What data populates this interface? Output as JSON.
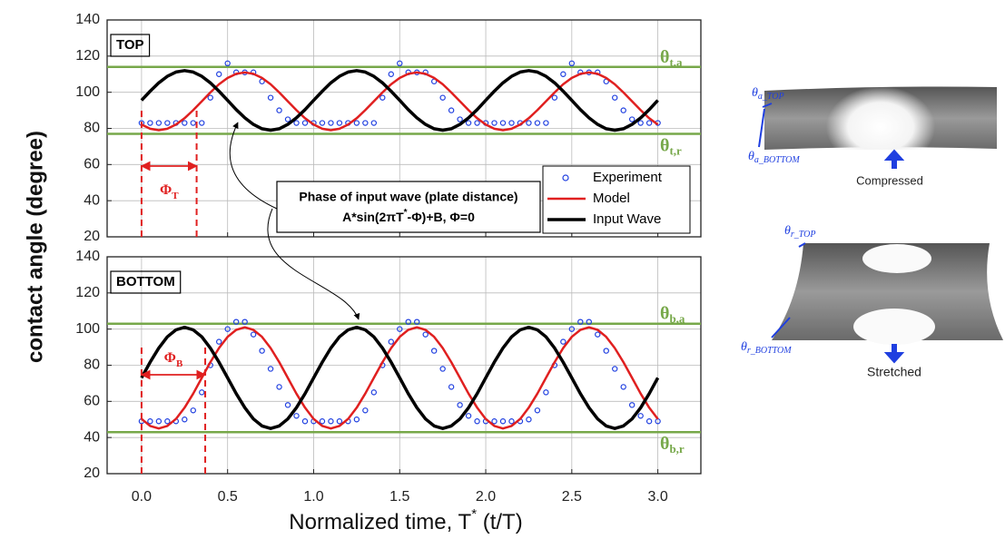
{
  "figure": {
    "ylabel": "contact angle (degree)",
    "xlabel": {
      "base": "Normalized time, T",
      "sup": "*",
      "tail": " (t/T)"
    },
    "annotation": {
      "line1": "Phase of input wave (plate distance)",
      "line2a": "A*sin(2πT",
      "line2sup": "*",
      "line2b": "-Φ)+B, Φ=0"
    }
  },
  "chart_data": [
    {
      "type": "line",
      "panel_label": "TOP",
      "legend": "lower right",
      "xlim": [
        -0.2,
        3.25
      ],
      "ylim": [
        20,
        140
      ],
      "yticks": [
        20,
        40,
        60,
        80,
        100,
        120,
        140
      ],
      "xticks": [
        0,
        0.5,
        1,
        1.5,
        2,
        2.5,
        3
      ],
      "grid": true,
      "x": [
        0,
        0.05,
        0.1,
        0.15,
        0.2,
        0.25,
        0.3,
        0.35,
        0.4,
        0.45,
        0.5,
        0.55,
        0.6,
        0.65,
        0.7,
        0.75,
        0.8,
        0.85,
        0.9,
        0.95,
        1,
        1.05,
        1.1,
        1.15,
        1.2,
        1.25,
        1.3,
        1.35,
        1.4,
        1.45,
        1.5,
        1.55,
        1.6,
        1.65,
        1.7,
        1.75,
        1.8,
        1.85,
        1.9,
        1.95,
        2,
        2.05,
        2.1,
        2.15,
        2.2,
        2.25,
        2.3,
        2.35,
        2.4,
        2.45,
        2.5,
        2.55,
        2.6,
        2.65,
        2.7,
        2.75,
        2.8,
        2.85,
        2.9,
        2.95,
        3
      ],
      "series": [
        {
          "name": "Experiment",
          "style": "markers",
          "color": "#1f3fe0",
          "values": [
            83,
            83,
            83,
            83,
            83,
            83,
            83,
            83,
            97,
            110,
            116,
            111,
            111,
            111,
            106,
            97,
            90,
            85,
            83,
            83,
            83,
            83,
            83,
            83,
            83,
            83,
            83,
            83,
            97,
            110,
            116,
            111,
            111,
            111,
            106,
            97,
            90,
            85,
            83,
            83,
            83,
            83,
            83,
            83,
            83,
            83,
            83,
            83,
            97,
            110,
            116,
            111,
            111,
            111,
            106,
            97,
            90,
            85,
            83,
            83,
            83
          ]
        },
        {
          "name": "Model",
          "style": "line",
          "color": "#e02020",
          "values": [
            82.1,
            79.8,
            79,
            79.8,
            82.1,
            85.6,
            90.1,
            95,
            99.9,
            104.4,
            107.9,
            110.2,
            111,
            110.2,
            107.9,
            104.4,
            99.9,
            95,
            90.1,
            85.6,
            82.1,
            79.8,
            79,
            79.8,
            82.1,
            85.6,
            90.1,
            95,
            99.9,
            104.4,
            107.9,
            110.2,
            111,
            110.2,
            107.9,
            104.4,
            99.9,
            95,
            90.1,
            85.6,
            82.1,
            79.8,
            79,
            79.8,
            82.1,
            85.6,
            90.1,
            95,
            99.9,
            104.4,
            107.9,
            110.2,
            111,
            110.2,
            107.9,
            104.4,
            99.9,
            95,
            90.1,
            85.6,
            82.1
          ]
        },
        {
          "name": "Input Wave",
          "style": "thick",
          "color": "#000000",
          "values": [
            95.5,
            100.6,
            105.2,
            108.8,
            111.2,
            112,
            111.2,
            108.8,
            105.2,
            100.6,
            95.5,
            90.4,
            85.8,
            82.2,
            79.8,
            79,
            79.8,
            82.2,
            85.8,
            90.4,
            95.5,
            100.6,
            105.2,
            108.8,
            111.2,
            112,
            111.2,
            108.8,
            105.2,
            100.6,
            95.5,
            90.4,
            85.8,
            82.2,
            79.8,
            79,
            79.8,
            82.2,
            85.8,
            90.4,
            95.5,
            100.6,
            105.2,
            108.8,
            111.2,
            112,
            111.2,
            108.8,
            105.2,
            100.6,
            95.5,
            90.4,
            85.8,
            82.2,
            79.8,
            79,
            79.8,
            82.2,
            85.8,
            90.4,
            95.5
          ]
        }
      ],
      "ref_lines": {
        "color": "#77a84a",
        "lines": [
          {
            "value": 114,
            "label": {
              "base": "θ",
              "sub": "t,a"
            }
          },
          {
            "value": 77,
            "label": {
              "base": "θ",
              "sub": "t,r"
            }
          }
        ]
      },
      "phase": {
        "color": "#e02020",
        "x": [
          0,
          0.32
        ],
        "label": {
          "base": "Φ",
          "sub": "T"
        }
      }
    },
    {
      "type": "line",
      "panel_label": "BOTTOM",
      "xlim": [
        -0.2,
        3.25
      ],
      "ylim": [
        20,
        140
      ],
      "yticks": [
        20,
        40,
        60,
        80,
        100,
        120,
        140
      ],
      "xticks": [
        {
          "value": 0,
          "label": "0.0"
        },
        0.5,
        {
          "value": 1,
          "label": "1.0"
        },
        1.5,
        {
          "value": 2,
          "label": "2.0"
        },
        2.5,
        {
          "value": 3,
          "label": "3.0"
        }
      ],
      "grid": true,
      "x": [
        0,
        0.05,
        0.1,
        0.15,
        0.2,
        0.25,
        0.3,
        0.35,
        0.4,
        0.45,
        0.5,
        0.55,
        0.6,
        0.65,
        0.7,
        0.75,
        0.8,
        0.85,
        0.9,
        0.95,
        1,
        1.05,
        1.1,
        1.15,
        1.2,
        1.25,
        1.3,
        1.35,
        1.4,
        1.45,
        1.5,
        1.55,
        1.6,
        1.65,
        1.7,
        1.75,
        1.8,
        1.85,
        1.9,
        1.95,
        2,
        2.05,
        2.1,
        2.15,
        2.2,
        2.25,
        2.3,
        2.35,
        2.4,
        2.45,
        2.5,
        2.55,
        2.6,
        2.65,
        2.7,
        2.75,
        2.8,
        2.85,
        2.9,
        2.95,
        3
      ],
      "series": [
        {
          "name": "Experiment",
          "style": "markers",
          "color": "#1f3fe0",
          "values": [
            49,
            49,
            49,
            49,
            49,
            50,
            55,
            65,
            80,
            93,
            100,
            104,
            104,
            97,
            88,
            78,
            68,
            58,
            52,
            49,
            49,
            49,
            49,
            49,
            49,
            50,
            55,
            65,
            80,
            93,
            100,
            104,
            104,
            97,
            88,
            78,
            68,
            58,
            52,
            49,
            49,
            49,
            49,
            49,
            49,
            50,
            55,
            65,
            80,
            93,
            100,
            104,
            104,
            97,
            88,
            78,
            68,
            58,
            52,
            49,
            49
          ]
        },
        {
          "name": "Model",
          "style": "line",
          "color": "#e02020",
          "values": [
            50.3,
            46.4,
            45,
            46.4,
            50.3,
            56.5,
            64.3,
            73,
            81.7,
            89.5,
            95.7,
            99.6,
            101,
            99.6,
            95.7,
            89.5,
            81.7,
            73,
            64.3,
            56.5,
            50.3,
            46.4,
            45,
            46.4,
            50.3,
            56.5,
            64.3,
            73,
            81.7,
            89.5,
            95.7,
            99.6,
            101,
            99.6,
            95.7,
            89.5,
            81.7,
            73,
            64.3,
            56.5,
            50.3,
            46.4,
            45,
            46.4,
            50.3,
            56.5,
            64.3,
            73,
            81.7,
            89.5,
            95.7,
            99.6,
            101,
            99.6,
            95.7,
            89.5,
            81.7,
            73,
            64.3,
            56.5,
            50.3
          ]
        },
        {
          "name": "Input Wave",
          "style": "thick",
          "color": "#000000",
          "values": [
            73,
            81.7,
            89.5,
            95.7,
            99.6,
            101,
            99.6,
            95.7,
            89.5,
            81.7,
            73,
            64.3,
            56.5,
            50.3,
            46.4,
            45,
            46.4,
            50.3,
            56.5,
            64.3,
            73,
            81.7,
            89.5,
            95.7,
            99.6,
            101,
            99.6,
            95.7,
            89.5,
            81.7,
            73,
            64.3,
            56.5,
            50.3,
            46.4,
            45,
            46.4,
            50.3,
            56.5,
            64.3,
            73,
            81.7,
            89.5,
            95.7,
            99.6,
            101,
            99.6,
            95.7,
            89.5,
            81.7,
            73,
            64.3,
            56.5,
            50.3,
            46.4,
            45,
            46.4,
            50.3,
            56.5,
            64.3,
            73
          ]
        }
      ],
      "ref_lines": {
        "color": "#77a84a",
        "lines": [
          {
            "value": 103,
            "label": {
              "base": "θ",
              "sub": "b,a"
            }
          },
          {
            "value": 43,
            "label": {
              "base": "θ",
              "sub": "b,r"
            }
          }
        ]
      },
      "phase": {
        "color": "#e02020",
        "x": [
          0,
          0.37
        ],
        "label": {
          "base": "Φ",
          "sub": "B"
        }
      }
    }
  ],
  "photos": [
    {
      "label_top": {
        "base": "θ",
        "sub": "a_TOP"
      },
      "label_bottom": {
        "base": "θ",
        "sub": "a_BOTTOM"
      },
      "caption": "Compressed"
    },
    {
      "label_top": {
        "base": "θ",
        "sub": "r_TOP"
      },
      "label_bottom": {
        "base": "θ",
        "sub": "r_BOTTOM"
      },
      "caption": "Stretched"
    }
  ]
}
